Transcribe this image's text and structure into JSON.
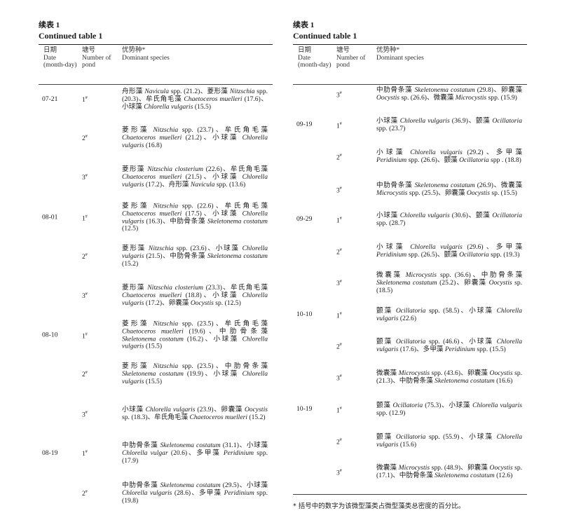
{
  "caption_cn": "续表 1",
  "caption_en": "Continued table 1",
  "headers": {
    "date_cn": "日期",
    "date_en": "Date (month-day)",
    "pond_cn": "塘号",
    "pond_en": "Number of pond",
    "species_cn": "优势种*",
    "species_en": "Dominant species"
  },
  "pond_mark": "#",
  "footnote": "* 括号中的数字为该微型藻类占微型藻类总密度的百分比。",
  "left_rows": [
    {
      "date": "07-21",
      "pond": "1",
      "species": [
        {
          "cn": "舟形藻",
          "la": "Navicula",
          "sp": "spp.",
          "v": "21.2"
        },
        {
          "cn": "菱形藻",
          "la": "Nitzschia",
          "sp": "spp.",
          "v": "20.3"
        },
        {
          "cn": "牟氏角毛藻",
          "la": "Chaetoceros muelleri",
          "sp": "",
          "v": "17.6"
        },
        {
          "cn": "小球藻",
          "la": "Chlorella vulgaris",
          "sp": "",
          "v": "15.5"
        }
      ]
    },
    {
      "date": "",
      "pond": "2",
      "species": [
        {
          "cn": "菱形藻",
          "la": "Nitzschia",
          "sp": "spp.",
          "v": "23.7"
        },
        {
          "cn": "牟氏角毛藻",
          "la": "Chaetoceros muelleri",
          "sp": "",
          "v": "21.2"
        },
        {
          "cn": "小球藻",
          "la": "Chlorella vulgaris",
          "sp": "",
          "v": "16.8"
        }
      ]
    },
    {
      "date": "",
      "pond": "3",
      "species": [
        {
          "cn": "菱形藻",
          "la": "Nitzschia closterium",
          "sp": "",
          "v": "22.6"
        },
        {
          "cn": "牟氏角毛藻",
          "la": "Chaetoceros muelleri",
          "sp": "",
          "v": "21.5"
        },
        {
          "cn": "小球藻",
          "la": "Chlorella vulgaris",
          "sp": "",
          "v": "17.2"
        },
        {
          "cn": "舟形藻",
          "la": "Navicula",
          "sp": "spp.",
          "v": "13.6"
        }
      ]
    },
    {
      "date": "08-01",
      "pond": "1",
      "species": [
        {
          "cn": "菱形藻",
          "la": "Nitzschia",
          "sp": "spp.",
          "v": "22.6"
        },
        {
          "cn": "牟氏角毛藻",
          "la": "Chaetoceros muelleri",
          "sp": "",
          "v": "17.5"
        },
        {
          "cn": "小球藻",
          "la": "Chlorella vulgaris",
          "sp": "",
          "v": "16.3"
        },
        {
          "cn": "中肋骨条藻",
          "la": "Skeletonema costatum",
          "sp": "",
          "v": "12.5"
        }
      ]
    },
    {
      "date": "",
      "pond": "2",
      "species": [
        {
          "cn": "菱形藻",
          "la": "Nitzschia",
          "sp": "spp.",
          "v": "23.6"
        },
        {
          "cn": "小球藻",
          "la": "Chlorella vulgaris",
          "sp": "",
          "v": "21.5"
        },
        {
          "cn": "中肋骨条藻",
          "la": "Skeletonema costatum",
          "sp": "",
          "v": "15.2"
        }
      ]
    },
    {
      "date": "",
      "pond": "3",
      "species": [
        {
          "cn": "菱形藻",
          "la": "Nitzschia closterium",
          "sp": "",
          "v": "23.3"
        },
        {
          "cn": "牟氏角毛藻",
          "la": "Chaetoceros muelleri",
          "sp": "",
          "v": "18.8"
        },
        {
          "cn": "小球藻",
          "la": "Chlorella vulgaris",
          "sp": "",
          "v": "17.2"
        },
        {
          "cn": "卵囊藻",
          "la": "Oocystis",
          "sp": "sp.",
          "v": "12.5"
        }
      ]
    },
    {
      "date": "08-10",
      "pond": "1",
      "species": [
        {
          "cn": "菱形藻",
          "la": "Nitzschia",
          "sp": "spp.",
          "v": "23.5"
        },
        {
          "cn": "牟氏角毛藻",
          "la": "Chaetoceros muelleri",
          "sp": "",
          "v": "19.6"
        },
        {
          "cn": "中肋骨条藻",
          "la": "Skeletonema costatum",
          "sp": "",
          "v": "16.2"
        },
        {
          "cn": "小球藻",
          "la": "Chlorella vulgaris",
          "sp": "",
          "v": "15.5"
        }
      ]
    },
    {
      "date": "",
      "pond": "2",
      "species": [
        {
          "cn": "菱形藻",
          "la": "Nitzschia",
          "sp": "spp.",
          "v": "23.5"
        },
        {
          "cn": "中肋骨条藻",
          "la": "Skeletonema costatum",
          "sp": "",
          "v": "19.9"
        },
        {
          "cn": "小球藻",
          "la": "Chlorella vulgaris",
          "sp": "",
          "v": "15.5"
        }
      ]
    },
    {
      "date": "",
      "pond": "3",
      "species": [
        {
          "cn": "小球藻",
          "la": "Chlorella vulgaris",
          "sp": "",
          "v": "23.9"
        },
        {
          "cn": "卵囊藻",
          "la": "Oocystis",
          "sp": "sp.",
          "v": "18.3"
        },
        {
          "cn": "牟氏角毛藻",
          "la": "Chaetoceros muelleri",
          "sp": "",
          "v": "15.2"
        }
      ]
    },
    {
      "date": "08-19",
      "pond": "1",
      "species": [
        {
          "cn": "中肋骨条藻",
          "la": "Skeletonema costatum",
          "sp": "",
          "v": "31.1"
        },
        {
          "cn": "小球藻",
          "la": "Chlorella vulgar",
          "sp": "",
          "v": "20.6"
        },
        {
          "cn": "多甲藻",
          "la": "Peridinium",
          "sp": "spp.",
          "v": "17.9"
        }
      ]
    },
    {
      "date": "",
      "pond": "2",
      "species": [
        {
          "cn": "中肋骨条藻",
          "la": "Skeletonema costatum",
          "sp": "",
          "v": "29.5"
        },
        {
          "cn": "小球藻",
          "la": "Chlorella vulgaris",
          "sp": "",
          "v": "28.6"
        },
        {
          "cn": "多甲藻",
          "la": "Peridinium",
          "sp": "spp.",
          "v": "19.8"
        }
      ]
    }
  ],
  "right_rows": [
    {
      "date": "",
      "pond": "3",
      "species": [
        {
          "cn": "中肋骨条藻",
          "la": "Skeletonema costatum",
          "sp": "",
          "v": "29.8"
        },
        {
          "cn": "卵囊藻",
          "la": "Oocystis",
          "sp": "sp.",
          "v": "26.6"
        },
        {
          "cn": "微囊藻",
          "la": "Microcystis",
          "sp": "spp.",
          "v": "15.9"
        }
      ]
    },
    {
      "date": "09-19",
      "pond": "1",
      "species": [
        {
          "cn": "小球藻",
          "la": "Chlorella vulgaris",
          "sp": "",
          "v": "36.9"
        },
        {
          "cn": "颤藻",
          "la": "Ocillatoria",
          "sp": "spp.",
          "v": "23.7"
        }
      ]
    },
    {
      "date": "",
      "pond": "2",
      "species": [
        {
          "cn": "小球藻",
          "la": "Chlorella vulgaris",
          "sp": "",
          "v": "29.2"
        },
        {
          "cn": "多甲藻",
          "la": "Peridinium",
          "sp": "spp.",
          "v": "26.6"
        },
        {
          "cn": "颤藻",
          "la": "Ocillatoria",
          "sp": "spp .",
          "v": "18.8"
        }
      ]
    },
    {
      "date": "",
      "pond": "3",
      "species": [
        {
          "cn": "中肋骨条藻",
          "la": "Skeletonema costatum",
          "sp": "",
          "v": "26.9"
        },
        {
          "cn": "微囊藻",
          "la": "Microcystis",
          "sp": "spp.",
          "v": "25.5"
        },
        {
          "cn": "卵囊藻",
          "la": "Oocystis",
          "sp": "sp.",
          "v": "15.5"
        }
      ]
    },
    {
      "date": "09-29",
      "pond": "1",
      "species": [
        {
          "cn": "小球藻",
          "la": "Chlorella vulgaris",
          "sp": "",
          "v": "30.6"
        },
        {
          "cn": "颤藻",
          "la": "Ocillatoria",
          "sp": "spp.",
          "v": "28.7"
        }
      ]
    },
    {
      "date": "",
      "pond": "2",
      "species": [
        {
          "cn": "小球藻",
          "la": "Chlorella vulgaris",
          "sp": "",
          "v": "29.6"
        },
        {
          "cn": "多甲藻",
          "la": "Peridinium",
          "sp": "spp.",
          "v": "26.5"
        },
        {
          "cn": "颤藻",
          "la": "Ocillatoria",
          "sp": "spp.",
          "v": "19.3"
        }
      ]
    },
    {
      "date": "",
      "pond": "3",
      "species": [
        {
          "cn": "微囊藻",
          "la": "Microcystis",
          "sp": "spp.",
          "v": "36.6"
        },
        {
          "cn": "中肋骨条藻",
          "la": "Skeletonema costatum",
          "sp": "",
          "v": "25.2"
        },
        {
          "cn": "卵囊藻",
          "la": "Oocystis",
          "sp": "sp.",
          "v": "18.5"
        }
      ]
    },
    {
      "date": "10-10",
      "pond": "1",
      "species": [
        {
          "cn": "颤藻",
          "la": "Ocillatoria",
          "sp": "spp.",
          "v": "58.5"
        },
        {
          "cn": "小球藻",
          "la": "Chlorella vulgaris",
          "sp": "",
          "v": "22.6"
        }
      ]
    },
    {
      "date": "",
      "pond": "2",
      "species": [
        {
          "cn": "颤藻",
          "la": "Ocillatoria",
          "sp": "spp.",
          "v": "46.6"
        },
        {
          "cn": "小球藻",
          "la": "Chlorella vulgaris",
          "sp": "",
          "v": "17.6"
        },
        {
          "cn": "多甲藻",
          "la": "Peridinium",
          "sp": "spp.",
          "v": "15.5"
        }
      ]
    },
    {
      "date": "",
      "pond": "3",
      "species": [
        {
          "cn": "微囊藻",
          "la": "Microcystis",
          "sp": "spp.",
          "v": "43.6"
        },
        {
          "cn": "卵囊藻",
          "la": "Oocystis",
          "sp": "sp.",
          "v": "21.3"
        },
        {
          "cn": "中肋骨条藻",
          "la": "Skeletonema costatum",
          "sp": "",
          "v": "16.6"
        }
      ]
    },
    {
      "date": "10-19",
      "pond": "1",
      "species": [
        {
          "cn": "颤藻",
          "la": "Ocillatoria",
          "sp": "",
          "v": "75.3"
        },
        {
          "cn": "小球藻",
          "la": "Chlorella vulgaris",
          "sp": "spp.",
          "v": "12.9"
        }
      ]
    },
    {
      "date": "",
      "pond": "2",
      "species": [
        {
          "cn": "颤藻",
          "la": "Ocillatoria",
          "sp": "spp.",
          "v": "55.9"
        },
        {
          "cn": "小球藻",
          "la": "Chlorella vulgaris",
          "sp": "",
          "v": "15.6"
        }
      ]
    },
    {
      "date": "",
      "pond": "3",
      "species": [
        {
          "cn": "微囊藻",
          "la": "Microcystis",
          "sp": "spp.",
          "v": "48.9"
        },
        {
          "cn": "卵囊藻",
          "la": "Oocystis",
          "sp": "sp.",
          "v": "17.1"
        },
        {
          "cn": "中肋骨条藻",
          "la": "Skeletonema costatum",
          "sp": "",
          "v": "12.6"
        }
      ]
    }
  ]
}
